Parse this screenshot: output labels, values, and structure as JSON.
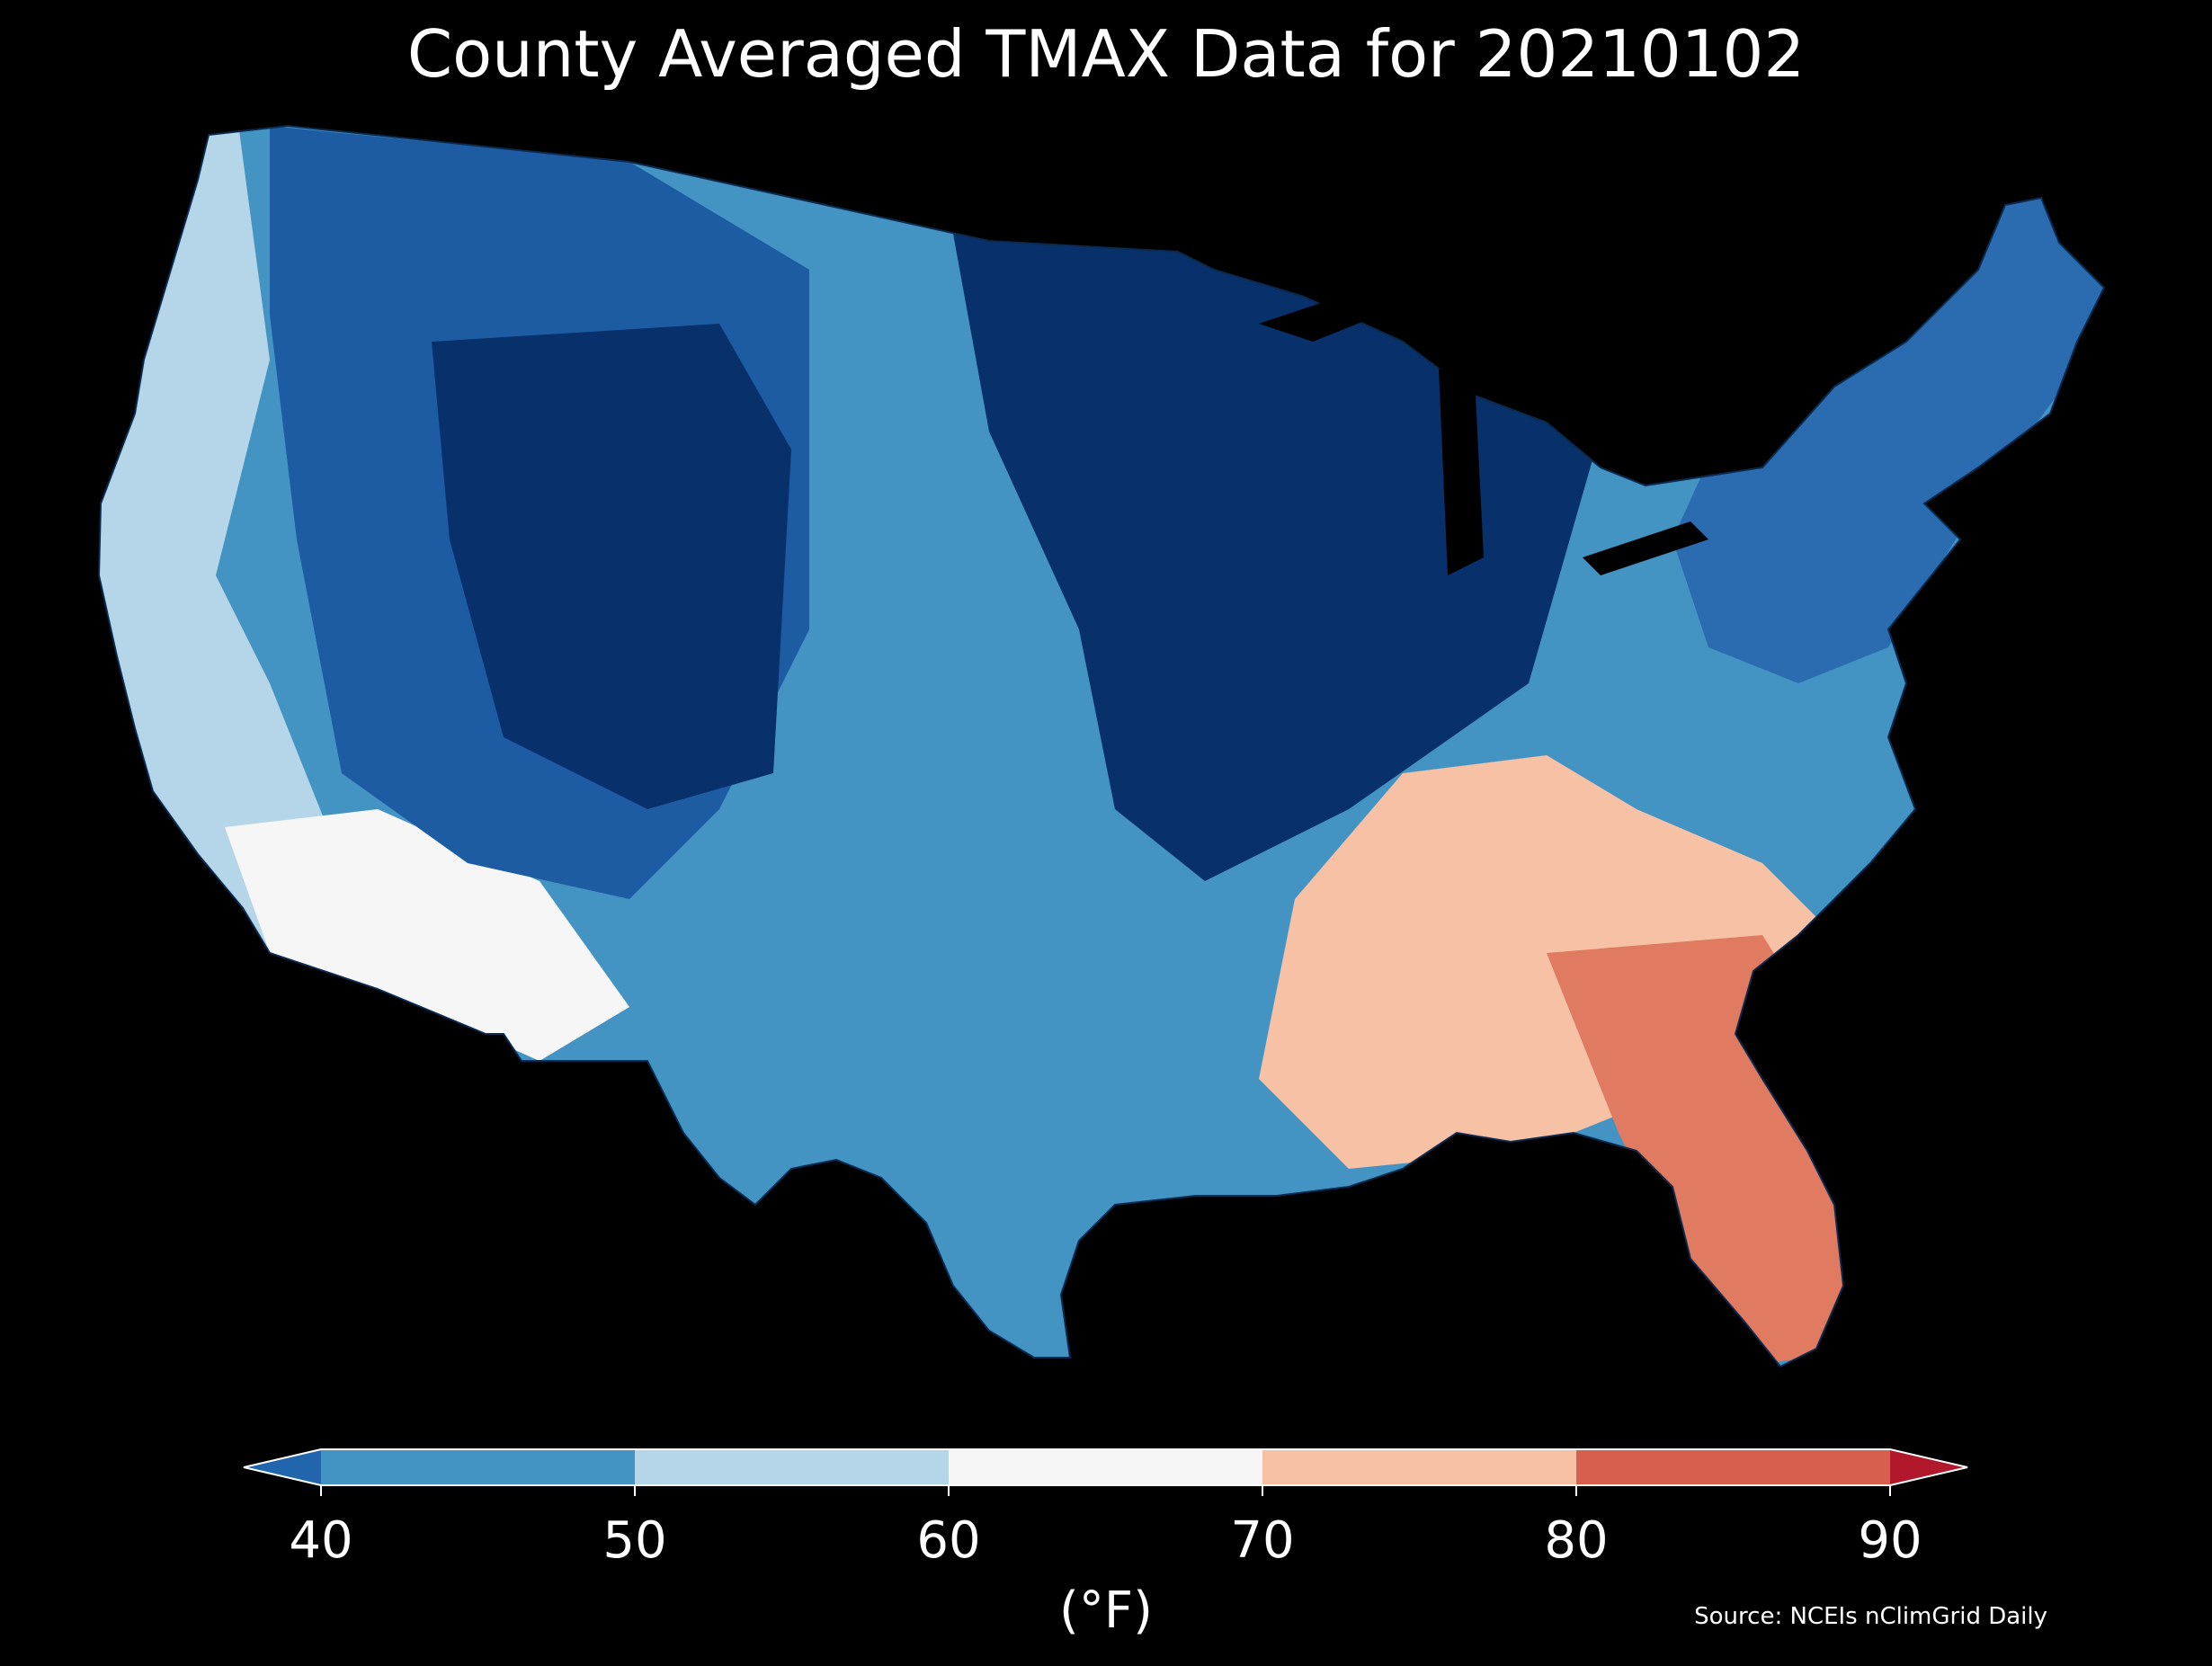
{
  "title": "County Averaged TMAX Data for 20210102",
  "source": "Source: NCEIs nClimGrid Daily",
  "colorbar": {
    "label": "(°F)",
    "ticks": [
      "40",
      "50",
      "60",
      "70",
      "80",
      "90"
    ],
    "bins": [
      {
        "range": "below 40",
        "color": "#2166ac"
      },
      {
        "range": "40-50",
        "color": "#4393c3"
      },
      {
        "range": "50-60",
        "color": "#b5d5e8"
      },
      {
        "range": "60-70",
        "color": "#f6f6f6"
      },
      {
        "range": "70-80",
        "color": "#f7c1a5"
      },
      {
        "range": "80-90",
        "color": "#d6604d"
      },
      {
        "range": "above 90",
        "color": "#b2182b"
      }
    ]
  },
  "background_color": "#000000",
  "map_regions": [
    {
      "name": "northern-plains-upper-midwest",
      "color": "#08306b"
    },
    {
      "name": "rockies-interior-west",
      "color": "#1d5ba3"
    },
    {
      "name": "central-plains-texas",
      "color": "#4393c3"
    },
    {
      "name": "pacific-coast",
      "color": "#b5d5e8"
    },
    {
      "name": "desert-southwest",
      "color": "#f6f6f6"
    },
    {
      "name": "southeast",
      "color": "#f7c1a5"
    },
    {
      "name": "florida",
      "color": "#e07a60"
    },
    {
      "name": "northeast",
      "color": "#2b6cb0"
    }
  ]
}
